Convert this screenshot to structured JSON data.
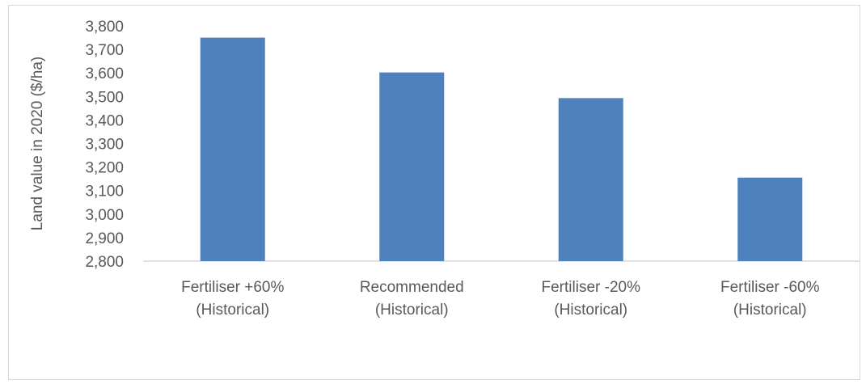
{
  "chart_data": {
    "type": "bar",
    "categories": [
      [
        "Fertiliser +60%",
        "(Historical)"
      ],
      [
        "Recommended",
        "(Historical)"
      ],
      [
        "Fertiliser -20%",
        "(Historical)"
      ],
      [
        "Fertiliser -60%",
        "(Historical)"
      ]
    ],
    "values": [
      3750,
      3602,
      3493,
      3155
    ],
    "title": "",
    "xlabel": "",
    "ylabel": "Land value in 2020 ($/ha)",
    "ylim": [
      2800,
      3800
    ],
    "yticks": [
      "2,800",
      "2,900",
      "3,000",
      "3,100",
      "3,200",
      "3,300",
      "3,400",
      "3,500",
      "3,600",
      "3,700",
      "3,800"
    ],
    "bar_color": "#4f81bd",
    "grid": false,
    "legend": "none"
  }
}
